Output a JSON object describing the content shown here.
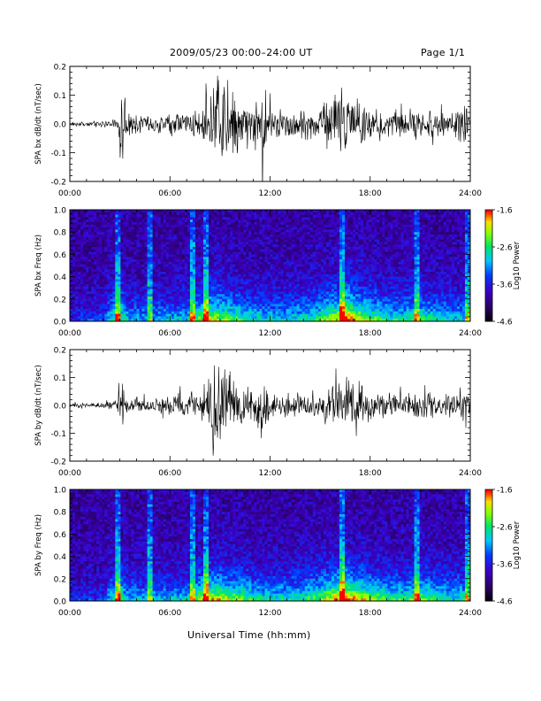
{
  "header": {
    "title": "2009/05/23  00:00–24:00 UT",
    "page": "Page 1/1"
  },
  "xlabel": "Universal Time (hh:mm)",
  "chart_data": [
    {
      "type": "line",
      "ylabel": "SPA bx dB/dt (nT/sec)",
      "xlim": [
        0,
        24
      ],
      "ylim": [
        -0.2,
        0.2
      ],
      "x_ticks": [
        "00:00",
        "06:00",
        "12:00",
        "18:00",
        "24:00"
      ],
      "y_ticks": [
        "-0.2",
        "-0.1",
        "0.0",
        "0.1",
        "0.2"
      ],
      "series": [
        {
          "x": [
            0,
            1,
            2,
            2.8,
            3.0,
            3.2,
            3.4,
            4,
            5,
            6,
            7,
            7.8,
            8.3,
            8.7,
            9.3,
            10,
            11,
            11.5,
            12,
            13,
            14,
            15,
            15.7,
            16.3,
            16.8,
            17.5,
            18,
            19,
            20,
            20.5,
            21,
            22,
            23,
            23.6,
            24
          ],
          "amplitude": [
            0.008,
            0.01,
            0.012,
            0.02,
            0.08,
            0.16,
            0.06,
            0.04,
            0.035,
            0.04,
            0.05,
            0.06,
            0.12,
            0.19,
            0.2,
            0.13,
            0.09,
            0.2,
            0.08,
            0.06,
            0.06,
            0.08,
            0.12,
            0.16,
            0.15,
            0.1,
            0.07,
            0.06,
            0.05,
            0.05,
            0.07,
            0.05,
            0.05,
            0.1,
            0.04
          ]
        }
      ]
    },
    {
      "type": "heatmap",
      "ylabel": "SPA bx Freq (Hz)",
      "xlim": [
        0,
        24
      ],
      "ylim": [
        0.0,
        1.0
      ],
      "x_ticks": [
        "00:00",
        "06:00",
        "12:00",
        "18:00",
        "24:00"
      ],
      "y_ticks": [
        "0.0",
        "0.2",
        "0.4",
        "0.6",
        "0.8",
        "1.0"
      ],
      "colorbar": {
        "label": "Log10 Power",
        "range": [
          -4.6,
          -1.6
        ],
        "ticks": [
          "-1.6",
          "-2.6",
          "-3.6",
          "-4.6"
        ]
      },
      "bright_bands_hours": [
        2.9,
        4.8,
        7.3,
        8.1,
        16.3,
        20.8,
        23.8
      ],
      "energy_profile": {
        "x": [
          0,
          2,
          2.9,
          3.5,
          5,
          7,
          8.2,
          9,
          10,
          11,
          12,
          13,
          14,
          15,
          16,
          16.5,
          17,
          18,
          19,
          20,
          21,
          22,
          23,
          24
        ],
        "level": [
          0.15,
          0.2,
          0.65,
          0.35,
          0.35,
          0.4,
          0.75,
          0.65,
          0.55,
          0.45,
          0.4,
          0.4,
          0.45,
          0.55,
          0.75,
          0.95,
          0.8,
          0.6,
          0.5,
          0.45,
          0.55,
          0.45,
          0.4,
          0.4
        ]
      }
    },
    {
      "type": "line",
      "ylabel": "SPA by dB/dt (nT/sec)",
      "xlim": [
        0,
        24
      ],
      "ylim": [
        -0.2,
        0.2
      ],
      "x_ticks": [
        "00:00",
        "06:00",
        "12:00",
        "18:00",
        "24:00"
      ],
      "y_ticks": [
        "-0.2",
        "-0.1",
        "0.0",
        "0.1",
        "0.2"
      ],
      "series": [
        {
          "x": [
            0,
            1,
            2,
            2.8,
            3.0,
            3.2,
            3.4,
            4,
            5,
            6,
            7,
            7.8,
            8.3,
            8.7,
            9.3,
            10,
            11,
            11.5,
            12,
            13,
            14,
            15,
            15.7,
            16.3,
            16.8,
            17.5,
            18,
            19,
            20,
            20.5,
            21,
            22,
            23,
            23.6,
            24
          ],
          "amplitude": [
            0.008,
            0.009,
            0.012,
            0.02,
            0.09,
            0.12,
            0.04,
            0.03,
            0.03,
            0.04,
            0.06,
            0.06,
            0.11,
            0.19,
            0.15,
            0.09,
            0.07,
            0.15,
            0.06,
            0.05,
            0.05,
            0.07,
            0.09,
            0.12,
            0.1,
            0.08,
            0.06,
            0.05,
            0.05,
            0.05,
            0.06,
            0.05,
            0.05,
            0.12,
            0.04
          ]
        }
      ]
    },
    {
      "type": "heatmap",
      "ylabel": "SPA by Freq (Hz)",
      "xlim": [
        0,
        24
      ],
      "ylim": [
        0.0,
        1.0
      ],
      "x_ticks": [
        "00:00",
        "06:00",
        "12:00",
        "18:00",
        "24:00"
      ],
      "y_ticks": [
        "0.0",
        "0.2",
        "0.4",
        "0.6",
        "0.8",
        "1.0"
      ],
      "colorbar": {
        "label": "Log10 Power",
        "range": [
          -4.6,
          -1.6
        ],
        "ticks": [
          "-1.6",
          "-2.6",
          "-3.6",
          "-4.6"
        ]
      },
      "bright_bands_hours": [
        2.9,
        4.8,
        7.3,
        8.1,
        16.3,
        20.8,
        23.8
      ],
      "energy_profile": {
        "x": [
          0,
          2,
          2.9,
          3.5,
          5,
          7,
          8.2,
          9,
          10,
          11,
          12,
          13,
          14,
          15,
          16,
          16.5,
          17,
          18,
          19,
          20,
          21,
          22,
          23,
          24
        ],
        "level": [
          0.15,
          0.2,
          0.6,
          0.35,
          0.35,
          0.4,
          0.75,
          0.7,
          0.6,
          0.5,
          0.45,
          0.45,
          0.5,
          0.6,
          0.8,
          0.95,
          0.8,
          0.65,
          0.55,
          0.5,
          0.6,
          0.5,
          0.45,
          0.45
        ]
      }
    }
  ]
}
